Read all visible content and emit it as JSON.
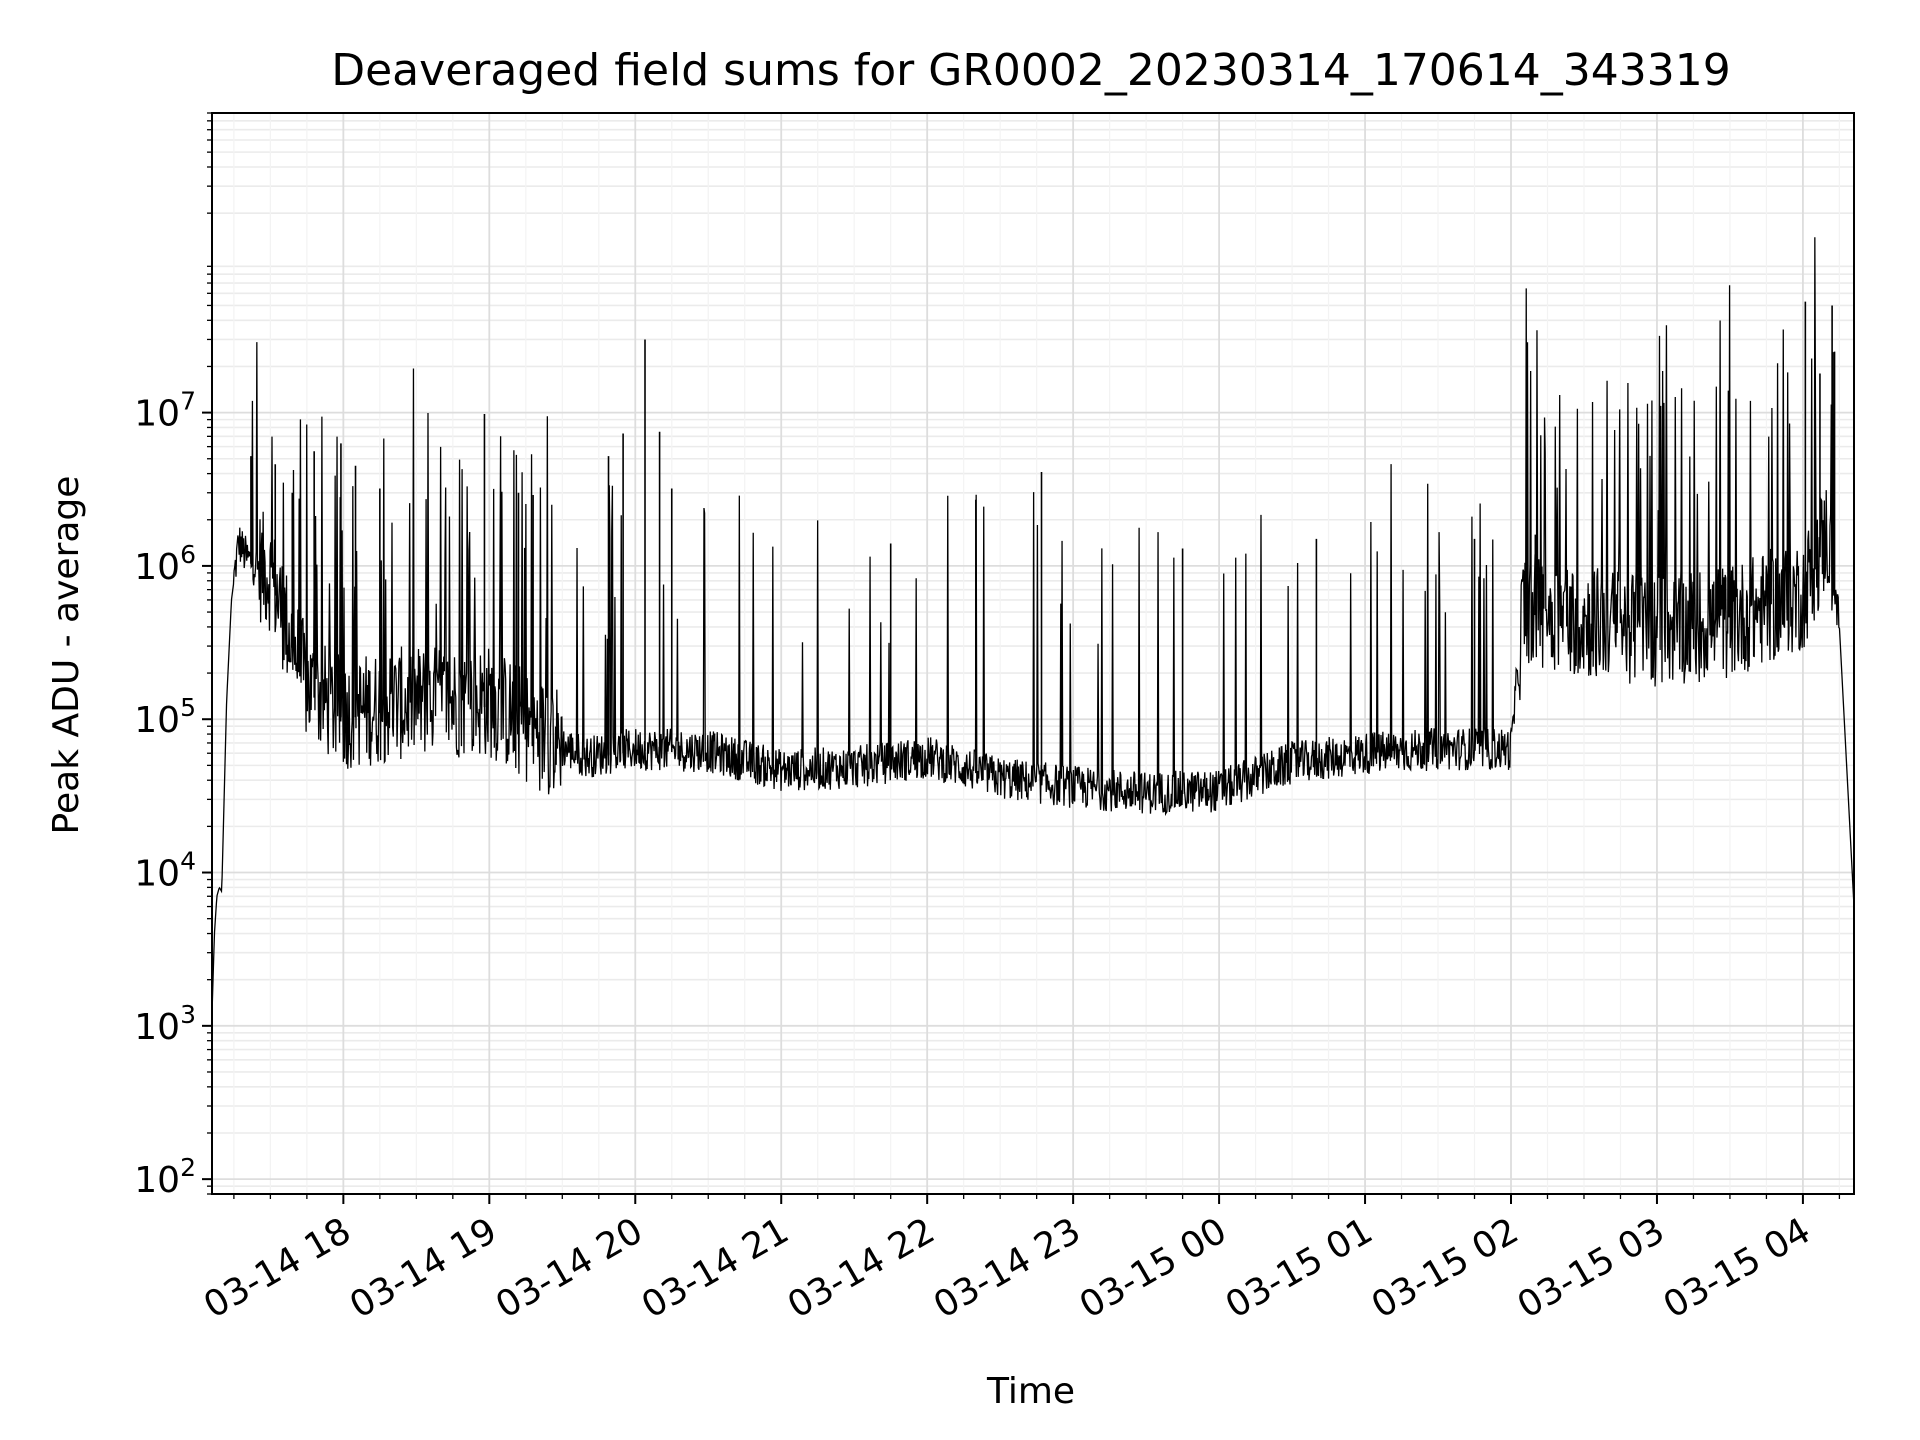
{
  "chart_data": {
    "type": "line",
    "title": "Deaveraged field sums for GR0002_20230314_170614_343319",
    "xlabel": "Time",
    "ylabel": "Peak ADU - average",
    "yscale": "log",
    "ylim": [
      80,
      900000000
    ],
    "xlim": [
      "2023-03-14 17:06",
      "2023-03-15 04:21"
    ],
    "grid": "major and minor",
    "legend": "none",
    "line_color": "#000000",
    "x_ticks": [
      {
        "t": "2023-03-14 18:00",
        "label": "03-14 18"
      },
      {
        "t": "2023-03-14 19:00",
        "label": "03-14 19"
      },
      {
        "t": "2023-03-14 20:00",
        "label": "03-14 20"
      },
      {
        "t": "2023-03-14 21:00",
        "label": "03-14 21"
      },
      {
        "t": "2023-03-14 22:00",
        "label": "03-14 22"
      },
      {
        "t": "2023-03-14 23:00",
        "label": "03-14 23"
      },
      {
        "t": "2023-03-15 00:00",
        "label": "03-15 00"
      },
      {
        "t": "2023-03-15 01:00",
        "label": "03-15 01"
      },
      {
        "t": "2023-03-15 02:00",
        "label": "03-15 02"
      },
      {
        "t": "2023-03-15 03:00",
        "label": "03-15 03"
      },
      {
        "t": "2023-03-15 04:00",
        "label": "03-15 04"
      }
    ],
    "y_ticks": [
      {
        "value": 100,
        "mant": "10",
        "exp": "2"
      },
      {
        "value": 1000,
        "mant": "10",
        "exp": "3"
      },
      {
        "value": 10000,
        "mant": "10",
        "exp": "4"
      },
      {
        "value": 100000,
        "mant": "10",
        "exp": "5"
      },
      {
        "value": 1000000,
        "mant": "10",
        "exp": "6"
      },
      {
        "value": 10000000,
        "mant": "10",
        "exp": "7"
      }
    ],
    "series": [
      {
        "points": [
          [
            "2023-03-14 17:06",
            1200
          ],
          [
            "2023-03-14 17:07",
            4000
          ],
          [
            "2023-03-14 17:08",
            7000
          ],
          [
            "2023-03-14 17:09",
            8000
          ],
          [
            "2023-03-14 17:10",
            7500
          ],
          [
            "2023-03-14 17:12",
            130000
          ],
          [
            "2023-03-14 17:14",
            600000
          ],
          [
            "2023-03-14 17:17",
            1400000
          ],
          [
            "2023-03-14 17:20",
            1100000
          ],
          [
            "2023-03-14 17:30",
            800000
          ],
          [
            "2023-03-14 17:45",
            150000
          ],
          [
            "2023-03-14 18:00",
            100000
          ],
          [
            "2023-03-14 18:30",
            120000
          ],
          [
            "2023-03-14 19:00",
            120000
          ],
          [
            "2023-03-14 19:20",
            75000
          ],
          [
            "2023-03-14 19:40",
            55000
          ],
          [
            "2023-03-14 20:00",
            62000
          ],
          [
            "2023-03-14 20:30",
            60000
          ],
          [
            "2023-03-14 21:00",
            45000
          ],
          [
            "2023-03-14 21:30",
            47000
          ],
          [
            "2023-03-14 22:00",
            55000
          ],
          [
            "2023-03-14 22:30",
            40000
          ],
          [
            "2023-03-14 23:00",
            35000
          ],
          [
            "2023-03-14 23:30",
            32000
          ],
          [
            "2023-03-15 00:00",
            33000
          ],
          [
            "2023-03-15 00:30",
            50000
          ],
          [
            "2023-03-15 01:00",
            58000
          ],
          [
            "2023-03-15 01:30",
            62000
          ],
          [
            "2023-03-15 02:00",
            62000
          ],
          [
            "2023-03-15 02:05",
            500000
          ],
          [
            "2023-03-15 02:30",
            400000
          ],
          [
            "2023-03-15 03:00",
            350000
          ],
          [
            "2023-03-15 03:30",
            400000
          ],
          [
            "2023-03-15 04:00",
            600000
          ],
          [
            "2023-03-15 04:10",
            1500000
          ],
          [
            "2023-03-15 04:15",
            400000
          ],
          [
            "2023-03-15 04:21",
            6000
          ]
        ],
        "spikes": [
          [
            "2023-03-14 17:22",
            5200000
          ],
          [
            "2023-03-14 17:32",
            4600000
          ],
          [
            "2023-03-14 17:39",
            3000000
          ],
          [
            "2023-03-14 17:48",
            5600000
          ],
          [
            "2023-03-14 17:59",
            6300000
          ],
          [
            "2023-03-14 18:05",
            4500000
          ],
          [
            "2023-03-14 18:15",
            3200000
          ],
          [
            "2023-03-14 18:58",
            9800000
          ],
          [
            "2023-03-14 19:12",
            3000000
          ],
          [
            "2023-03-14 19:18",
            2900000
          ],
          [
            "2023-03-14 19:49",
            5200000
          ],
          [
            "2023-03-14 19:55",
            7300000
          ],
          [
            "2023-03-14 20:04",
            30000000
          ],
          [
            "2023-03-14 20:10",
            7500000
          ],
          [
            "2023-03-14 20:15",
            3200000
          ],
          [
            "2023-03-14 21:45",
            1400000
          ],
          [
            "2023-03-14 22:20",
            2700000
          ],
          [
            "2023-03-14 22:47",
            4100000
          ],
          [
            "2023-03-14 23:45",
            1300000
          ],
          [
            "2023-03-15 00:40",
            1500000
          ],
          [
            "2023-03-15 01:45",
            1500000
          ],
          [
            "2023-03-15 02:10",
            1600000
          ],
          [
            "2023-03-15 04:01",
            53000000
          ],
          [
            "2023-03-15 04:05",
            17000000
          ],
          [
            "2023-03-15 04:07",
            18000000
          ],
          [
            "2023-03-15 04:12",
            50000000
          ],
          [
            "2023-03-15 04:13",
            25000000
          ]
        ]
      }
    ]
  }
}
